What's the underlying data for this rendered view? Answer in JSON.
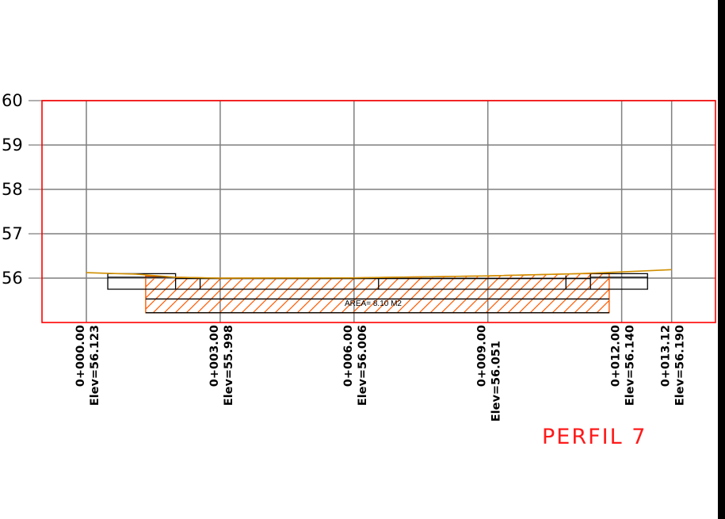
{
  "title": "PERFIL 7",
  "area_label": "AREA= 8.10 M2",
  "colors": {
    "frame": "#ff0000",
    "grid": "#7f7f7f",
    "terrain": "#d08f00",
    "hatch": "#ff5a00",
    "outline": "#000000",
    "title": "#ff1a1a",
    "right_bar": "#000000"
  },
  "chart_data": {
    "type": "line",
    "ylim": [
      55,
      60
    ],
    "y_ticks": [
      {
        "value": 60,
        "label": "60"
      },
      {
        "value": 59,
        "label": "59"
      },
      {
        "value": 58,
        "label": "58"
      },
      {
        "value": 57,
        "label": "57"
      },
      {
        "value": 56,
        "label": "56"
      }
    ],
    "stations": [
      {
        "station": 0.0,
        "label": "0+000.00",
        "elev_label": "Elev=56.123"
      },
      {
        "station": 3.0,
        "label": "0+003.00",
        "elev_label": "Elev=55.998"
      },
      {
        "station": 6.0,
        "label": "0+006.00",
        "elev_label": "Elev=56.006"
      },
      {
        "station": 9.0,
        "label": "",
        "elev_label": "Elev=56.051"
      },
      {
        "station": 9.0,
        "label": "0+009.00",
        "elev_label": ""
      },
      {
        "station": 12.0,
        "label": "0+012.00",
        "elev_label": "Elev=56.140"
      },
      {
        "station": 13.12,
        "label": "0+013.12",
        "elev_label": "Elev=56.190"
      }
    ],
    "series": [
      {
        "values": [
          [
            0.0,
            56.123
          ],
          [
            1.1,
            56.09
          ],
          [
            2.0,
            56.02
          ],
          [
            3.0,
            55.998
          ],
          [
            6.0,
            56.006
          ],
          [
            9.0,
            56.051
          ],
          [
            11.0,
            56.1
          ],
          [
            12.0,
            56.14
          ],
          [
            13.12,
            56.19
          ]
        ]
      }
    ],
    "hatched_area": {
      "label": "AREA= 8.10 M2",
      "x_range": [
        1.33,
        11.72
      ],
      "y_bottom": 55.22,
      "left_top": 56.05,
      "right_top": 56.1
    }
  }
}
